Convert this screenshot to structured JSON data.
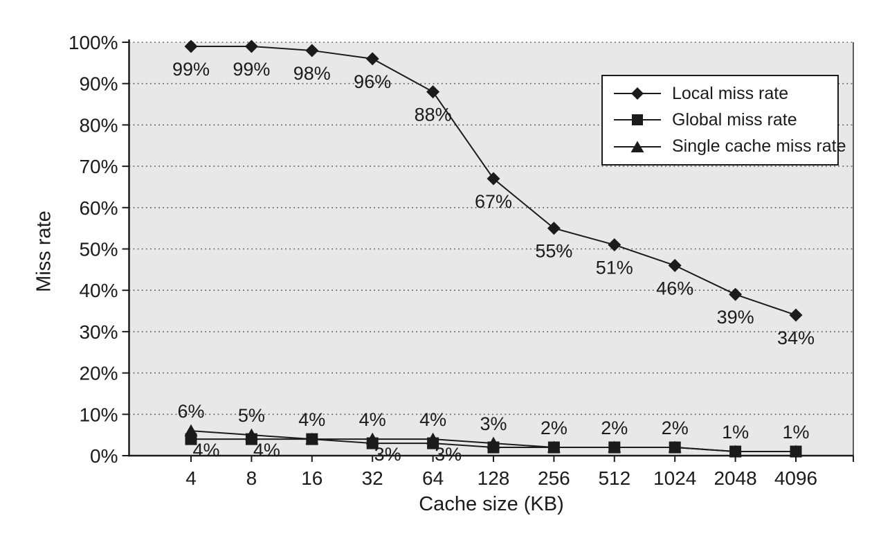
{
  "figure": {
    "bg": "#ffffff",
    "plot_bg": "#e8e8e8",
    "line_color": "#1b1b1b",
    "grid_color": "#555555",
    "text_color": "#1b1b1b"
  },
  "chart_data": {
    "type": "line",
    "title": "",
    "xlabel": "Cache size (KB)",
    "ylabel": "Miss rate",
    "categories": [
      "4",
      "8",
      "16",
      "32",
      "64",
      "128",
      "256",
      "512",
      "1024",
      "2048",
      "4096"
    ],
    "x_scale": "log2-categorical",
    "ylim": [
      0,
      100
    ],
    "ytick_step": 10,
    "ytick_suffix": "%",
    "grid": "horizontal-dotted",
    "legend_position": "top-right-inside",
    "series": [
      {
        "name": "Local miss rate",
        "marker": "diamond",
        "values": [
          99,
          99,
          98,
          96,
          88,
          67,
          55,
          51,
          46,
          39,
          34
        ],
        "point_labels": [
          "99%",
          "99%",
          "98%",
          "96%",
          "88%",
          "67%",
          "55%",
          "51%",
          "46%",
          "39%",
          "34%"
        ],
        "label_placement": "below"
      },
      {
        "name": "Global miss rate",
        "marker": "square",
        "values": [
          4,
          4,
          4,
          3,
          3,
          2,
          2,
          2,
          2,
          1,
          1
        ],
        "point_labels": [
          "4%",
          "4%",
          "",
          "3%",
          "3%",
          "",
          "",
          "",
          "",
          "",
          ""
        ],
        "label_placement": "below-right"
      },
      {
        "name": "Single cache miss rate",
        "marker": "triangle",
        "values": [
          6,
          5,
          4,
          4,
          4,
          3,
          2,
          2,
          2,
          1,
          1
        ],
        "point_labels": [
          "6%",
          "5%",
          "4%",
          "4%",
          "4%",
          "3%",
          "2%",
          "2%",
          "2%",
          "1%",
          "1%"
        ],
        "label_placement": "above"
      }
    ]
  }
}
